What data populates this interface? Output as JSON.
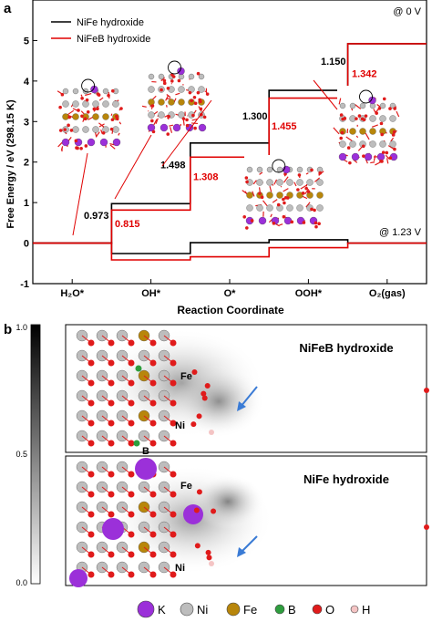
{
  "panel_a": {
    "label": "a",
    "ylabel": "Free Energy / eV (298.15 K)",
    "xlabel": "Reaction Coordinate",
    "conditions": [
      "@ 0 V",
      "@ 1.23 V"
    ],
    "colors": {
      "nife": "#000000",
      "nifeb": "#e00000"
    },
    "chart_data": {
      "type": "line",
      "categories": [
        "H₂O*",
        "OH*",
        "O*",
        "OOH*",
        "O₂(gas)"
      ],
      "ylim": [
        -1,
        6
      ],
      "yticks": [
        "-1",
        "0",
        "1",
        "2",
        "3",
        "4",
        "5"
      ],
      "series": [
        {
          "name": "NiFe hydroxide",
          "color": "#000000",
          "values_0V": [
            0,
            0.973,
            2.471,
            3.771,
            4.921
          ],
          "values_123V": [
            0,
            -0.257,
            0.011,
            0.081,
            0.001
          ],
          "step_labels": [
            "0.973",
            "1.498",
            "1.300",
            "1.150"
          ]
        },
        {
          "name": "NiFeB hydroxide",
          "color": "#e00000",
          "values_0V": [
            0,
            0.815,
            2.123,
            3.578,
            4.92
          ],
          "values_123V": [
            0,
            -0.415,
            -0.337,
            -0.112,
            0
          ]
        }
      ],
      "nifeb_step_labels": [
        "0.815",
        "1.308",
        "1.455",
        "1.342"
      ]
    }
  },
  "panel_b": {
    "label": "b",
    "scale_ticks": [
      "1.0",
      "0.5",
      "0.0"
    ],
    "top_title": "NiFeB hydroxide",
    "bottom_title": "NiFe hydroxide",
    "atom_labels": {
      "fe": "Fe",
      "ni": "Ni",
      "b": "B"
    }
  },
  "legend": [
    {
      "symbol": "K",
      "color": "#9b30d9"
    },
    {
      "symbol": "Ni",
      "color": "#bdbdbd"
    },
    {
      "symbol": "Fe",
      "color": "#b8860b"
    },
    {
      "symbol": "B",
      "color": "#2e9e3e"
    },
    {
      "symbol": "O",
      "color": "#e01b1b"
    },
    {
      "symbol": "H",
      "color": "#f4c4c4"
    }
  ]
}
